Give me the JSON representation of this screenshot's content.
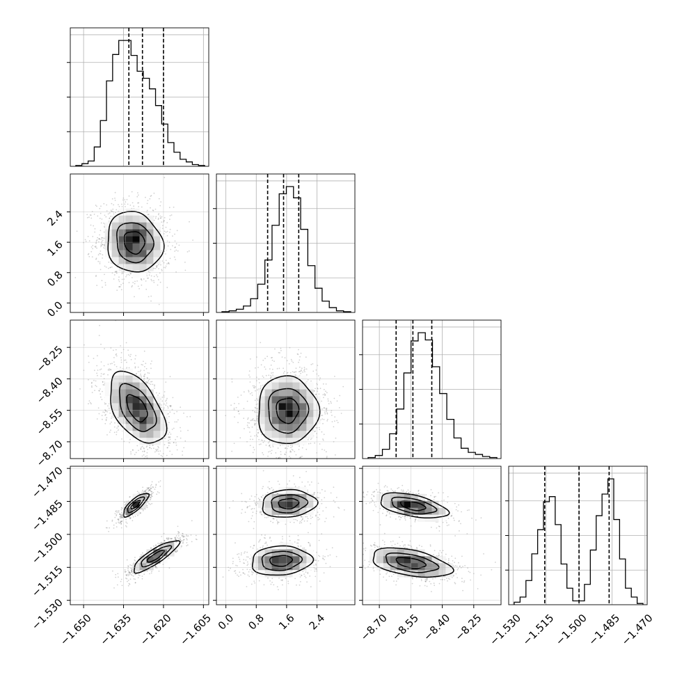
{
  "chart_data": {
    "type": "corner",
    "grid": true,
    "variables": [
      {
        "range": [
          -1.655,
          -1.603
        ],
        "ticks": [
          -1.65,
          -1.635,
          -1.62,
          -1.605
        ],
        "tick_labels": [
          "−1.650",
          "−1.635",
          "−1.620",
          "−1.605"
        ],
        "quantiles": [
          -1.633,
          -1.6279,
          -1.62
        ]
      },
      {
        "range": [
          -0.25,
          3.4
        ],
        "ticks": [
          0.0,
          0.8,
          1.6,
          2.4
        ],
        "tick_labels": [
          "0.0",
          "0.8",
          "1.6",
          "2.4"
        ],
        "quantiles": [
          1.1,
          1.52,
          1.92
        ]
      },
      {
        "range": [
          -8.78,
          -8.12
        ],
        "ticks": [
          -8.7,
          -8.55,
          -8.4,
          -8.25
        ],
        "tick_labels": [
          "−8.70",
          "−8.55",
          "−8.40",
          "−8.25"
        ],
        "quantiles": [
          -8.62,
          -8.54,
          -8.45
        ]
      },
      {
        "range": [
          -1.532,
          -1.469
        ],
        "ticks": [
          -1.53,
          -1.515,
          -1.5,
          -1.485,
          -1.47
        ],
        "tick_labels": [
          "−1.530",
          "−1.515",
          "−1.500",
          "−1.485",
          "−1.470"
        ],
        "quantiles": [
          -1.5156,
          -1.5,
          -1.4863
        ]
      }
    ],
    "histograms": [
      {
        "counts": [
          1,
          3,
          6,
          22,
          52,
          97,
          127,
          143,
          143,
          126,
          108,
          100,
          88,
          69,
          48,
          27,
          16,
          8,
          5,
          2,
          1
        ]
      },
      {
        "counts": [
          1,
          2,
          4,
          8,
          17,
          35,
          65,
          108,
          147,
          156,
          142,
          103,
          58,
          30,
          14,
          6,
          2,
          1
        ]
      },
      {
        "counts": [
          1,
          3,
          9,
          24,
          48,
          83,
          114,
          122,
          115,
          89,
          63,
          38,
          20,
          10,
          6,
          4,
          2,
          1
        ]
      },
      {
        "counts": [
          2,
          6,
          19,
          40,
          59,
          81,
          85,
          63,
          32,
          13,
          3,
          3,
          16,
          43,
          70,
          87,
          99,
          67,
          36,
          13,
          6,
          1
        ]
      }
    ],
    "pairs": [
      {
        "x_var": 0,
        "y_var": 1,
        "modes": [
          {
            "cx": -1.631,
            "cy": 1.6,
            "sx": 0.0055,
            "sy": 0.42,
            "rho": -0.1,
            "w": 1
          }
        ]
      },
      {
        "x_var": 0,
        "y_var": 2,
        "modes": [
          {
            "cx": -1.63,
            "cy": -8.54,
            "sx": 0.0055,
            "sy": 0.09,
            "rho": -0.5,
            "w": 1
          }
        ]
      },
      {
        "x_var": 0,
        "y_var": 3,
        "modes": [
          {
            "cx": -1.6305,
            "cy": -1.4865,
            "sx": 0.0025,
            "sy": 0.0028,
            "rho": 0.8,
            "w": 0.5
          },
          {
            "cx": -1.623,
            "cy": -1.51,
            "sx": 0.0045,
            "sy": 0.0038,
            "rho": 0.85,
            "w": 0.5
          }
        ]
      },
      {
        "x_var": 1,
        "y_var": 2,
        "modes": [
          {
            "cx": 1.62,
            "cy": -8.55,
            "sx": 0.42,
            "sy": 0.085,
            "rho": 0.0,
            "w": 1
          }
        ]
      },
      {
        "x_var": 1,
        "y_var": 3,
        "modes": [
          {
            "cx": 1.65,
            "cy": -1.486,
            "sx": 0.38,
            "sy": 0.0033,
            "rho": 0.1,
            "w": 0.5
          },
          {
            "cx": 1.45,
            "cy": -1.512,
            "sx": 0.42,
            "sy": 0.0035,
            "rho": 0.1,
            "w": 0.5
          }
        ]
      },
      {
        "x_var": 2,
        "y_var": 3,
        "modes": [
          {
            "cx": -8.54,
            "cy": -1.487,
            "sx": 0.085,
            "sy": 0.003,
            "rho": -0.5,
            "w": 0.5
          },
          {
            "cx": -8.55,
            "cy": -1.513,
            "sx": 0.1,
            "sy": 0.0035,
            "rho": -0.45,
            "w": 0.5
          }
        ]
      }
    ]
  }
}
